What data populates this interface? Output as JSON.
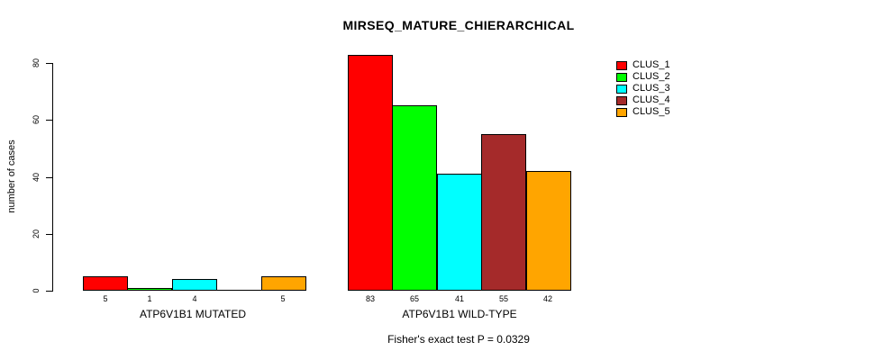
{
  "title": "MIRSEQ_MATURE_CHIERARCHICAL",
  "chart_data": {
    "type": "bar",
    "title": "MIRSEQ_MATURE_CHIERARCHICAL",
    "xlabel": "",
    "ylabel": "number of cases",
    "ylim": [
      0,
      80
    ],
    "yticks": [
      0,
      20,
      40,
      60,
      80
    ],
    "grid": false,
    "legend_position": "top-right",
    "series_names": [
      "CLUS_1",
      "CLUS_2",
      "CLUS_3",
      "CLUS_4",
      "CLUS_5"
    ],
    "colors": [
      "#FF0000",
      "#00FF00",
      "#00FFFF",
      "#A52A2A",
      "#FFA500"
    ],
    "groups": [
      {
        "label": "ATP6V1B1 MUTATED",
        "values": [
          5,
          1,
          4,
          0,
          5
        ],
        "bar_labels": [
          "5",
          "1",
          "4",
          "",
          "5"
        ]
      },
      {
        "label": "ATP6V1B1 WILD-TYPE",
        "values": [
          83,
          65,
          41,
          55,
          42
        ],
        "bar_labels": [
          "83",
          "65",
          "41",
          "55",
          "42"
        ]
      }
    ],
    "annotation": "Fisher's exact test P = 0.0329"
  },
  "legend": {
    "items": [
      {
        "label": "CLUS_1",
        "color": "#FF0000"
      },
      {
        "label": "CLUS_2",
        "color": "#00FF00"
      },
      {
        "label": "CLUS_3",
        "color": "#00FFFF"
      },
      {
        "label": "CLUS_4",
        "color": "#A52A2A"
      },
      {
        "label": "CLUS_5",
        "color": "#FFA500"
      }
    ]
  }
}
